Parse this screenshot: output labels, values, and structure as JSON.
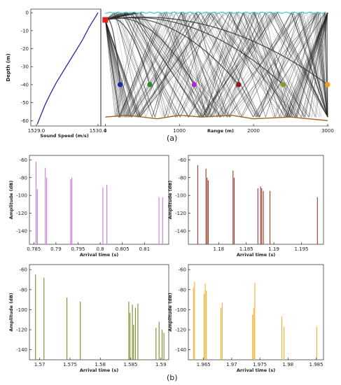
{
  "captions": {
    "top": "(a)",
    "bottom": "(b)"
  },
  "chart_data": [
    {
      "id": "ssp",
      "type": "line",
      "xlabel": "Sound Speed (m/s)",
      "ylabel": "Depth (m)",
      "xlim": [
        1529.0,
        1530.4
      ],
      "ylim": [
        -63,
        2
      ],
      "xticks": [
        "1529.0",
        "1530.4"
      ],
      "yticks": [
        0,
        -10,
        -20,
        -30,
        -40,
        -50,
        -60
      ],
      "color": "#2a2aa8",
      "x": [
        1529.02,
        1529.1,
        1529.2,
        1529.32,
        1529.45,
        1529.6,
        1529.75,
        1529.9,
        1530.05,
        1530.2,
        1530.4
      ],
      "y": [
        -62,
        -57,
        -51,
        -45,
        -39,
        -33,
        -27,
        -21,
        -15,
        -8,
        0
      ]
    },
    {
      "id": "rays",
      "type": "line",
      "xlabel": "Range (m)",
      "xlim": [
        -60,
        3020
      ],
      "ylim": [
        -63,
        2
      ],
      "xticks": [
        0,
        1000,
        2000,
        3000
      ],
      "source": {
        "x": 0,
        "y": -4,
        "color": "#e02020"
      },
      "receivers": [
        {
          "x": 200,
          "y": -40,
          "color": "#1a2aa0"
        },
        {
          "x": 600,
          "y": -40,
          "color": "#2a8a2a"
        },
        {
          "x": 1200,
          "y": -40,
          "color": "#b02ad0"
        },
        {
          "x": 1800,
          "y": -40,
          "color": "#8a1a1a"
        },
        {
          "x": 2400,
          "y": -40,
          "color": "#8a9a2a"
        },
        {
          "x": 3000,
          "y": -40,
          "color": "#f0a010"
        }
      ],
      "surface_color": "#40c8c0",
      "bottom_color": "#a0601a",
      "bottom": {
        "x": [
          0,
          300,
          700,
          1000,
          1300,
          1700,
          2000,
          2500,
          3000
        ],
        "y": [
          -58,
          -57,
          -59,
          -57,
          -58,
          -57,
          -59,
          -58,
          -60
        ]
      }
    },
    {
      "id": "arr-purple",
      "type": "bar",
      "xlabel": "Arrival time (s)",
      "ylabel": "Amplitude (dB)",
      "xlim": [
        0.784,
        0.8155
      ],
      "ylim": [
        -155,
        -55
      ],
      "xticks": [
        0.785,
        0.79,
        0.795,
        0.8,
        0.805,
        0.81
      ],
      "xtick_labels": [
        "0.785",
        "0.79",
        "0.795",
        "0.8",
        "0.805",
        "0.81"
      ],
      "yticks": [
        -60,
        -80,
        -100,
        -120,
        -140
      ],
      "color": "#c678d8",
      "x": [
        0.7855,
        0.7858,
        0.7876,
        0.7879,
        0.7933,
        0.7936,
        0.8006,
        0.8015,
        0.8133,
        0.8141
      ],
      "y": [
        -62,
        -93,
        -69,
        -80,
        -82,
        -80,
        -91,
        -88,
        -102,
        -102
      ]
    },
    {
      "id": "arr-red",
      "type": "bar",
      "xlabel": "Arrival time (s)",
      "ylabel": "Amplitude (dB)",
      "xlim": [
        1.1745,
        1.199
      ],
      "ylim": [
        -155,
        -55
      ],
      "xticks": [
        1.18,
        1.185,
        1.19,
        1.195
      ],
      "xtick_labels": [
        "1.18",
        "1.185",
        "1.19",
        "1.195"
      ],
      "yticks": [
        -60,
        -80,
        -100,
        -120,
        -140
      ],
      "color": "#9a3a2a",
      "x": [
        1.1762,
        1.1777,
        1.1779,
        1.1781,
        1.1826,
        1.1828,
        1.1871,
        1.1876,
        1.1878,
        1.1881,
        1.1893,
        1.1979
      ],
      "y": [
        -66,
        -70,
        -80,
        -83,
        -72,
        -80,
        -92,
        -90,
        -92,
        -95,
        -95,
        -102
      ]
    },
    {
      "id": "arr-olive",
      "type": "bar",
      "xlabel": "Arrival time (s)",
      "ylabel": "Amplitude (dB)",
      "xlim": [
        1.5683,
        1.5913
      ],
      "ylim": [
        -150,
        -55
      ],
      "xticks": [
        1.57,
        1.575,
        1.58,
        1.585,
        1.59
      ],
      "xtick_labels": [
        "1.57",
        "1.575",
        "1.58",
        "1.585",
        "1.59"
      ],
      "yticks": [
        -60,
        -80,
        -100,
        -120,
        -140
      ],
      "color": "#7a8a2a",
      "x": [
        1.5693,
        1.5707,
        1.5745,
        1.5767,
        1.5847,
        1.5849,
        1.5853,
        1.5855,
        1.5858,
        1.5862,
        1.5892,
        1.5897,
        1.5902,
        1.5905
      ],
      "y": [
        -65,
        -68,
        -88,
        -92,
        -92,
        -103,
        -95,
        -115,
        -98,
        -94,
        -118,
        -112,
        -120,
        -123
      ]
    },
    {
      "id": "arr-orange",
      "type": "bar",
      "xlabel": "Arrival time (s)",
      "ylabel": "Amplitude (dB)",
      "xlim": [
        1.9623,
        1.9863
      ],
      "ylim": [
        -150,
        -55
      ],
      "xticks": [
        1.965,
        1.97,
        1.975,
        1.98,
        1.985
      ],
      "xtick_labels": [
        "1.965",
        "1.97",
        "1.975",
        "1.98",
        "1.985"
      ],
      "yticks": [
        -60,
        -80,
        -100,
        -120,
        -140
      ],
      "color": "#f0b030",
      "x": [
        1.9632,
        1.9634,
        1.9651,
        1.9653,
        1.9655,
        1.9681,
        1.9683,
        1.9737,
        1.9739,
        1.9741,
        1.9789,
        1.9793,
        1.9851
      ],
      "y": [
        -78,
        -72,
        -84,
        -74,
        -81,
        -98,
        -93,
        -105,
        -98,
        -73,
        -107,
        -117,
        -117
      ]
    }
  ]
}
